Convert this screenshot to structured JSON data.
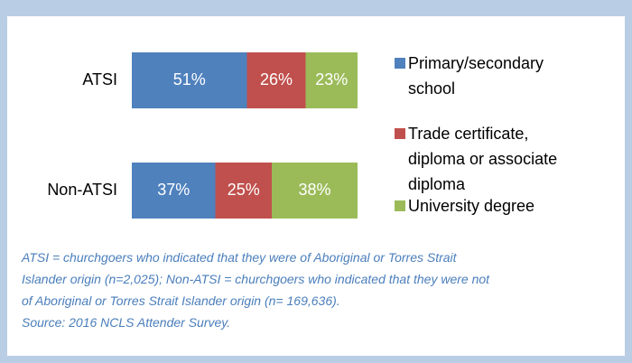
{
  "chart_data": {
    "type": "stacked-bar-horizontal",
    "categories": [
      "ATSI",
      "Non-ATSI"
    ],
    "series": [
      {
        "name": "Primary/secondary school",
        "color": "#4f81bd",
        "values": [
          51,
          37
        ],
        "value_labels": [
          "51%",
          "37%"
        ]
      },
      {
        "name": "Trade certificate, diploma or associate diploma",
        "color": "#c0504d",
        "values": [
          26,
          25
        ],
        "value_labels": [
          "26%",
          "25%"
        ]
      },
      {
        "name": "University degree",
        "color": "#9bbb59",
        "values": [
          23,
          38
        ],
        "value_labels": [
          "23%",
          "38%"
        ]
      }
    ],
    "footnote": [
      "ATSI = churchgoers who indicated that they were of Aboriginal or Torres Strait",
      "Islander origin (n=2,025); Non-ATSI = churchgoers who indicated that they were not",
      "of Aboriginal or Torres Strait Islander origin (n= 169,636).",
      "Source: 2016 NCLS Attender Survey."
    ]
  }
}
